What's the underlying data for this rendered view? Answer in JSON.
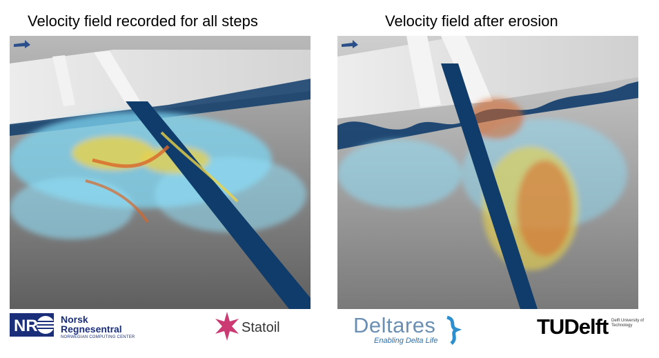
{
  "titles": {
    "left": "Velocity field recorded for all steps",
    "right": "Velocity field after erosion"
  },
  "logos": {
    "nr": {
      "mark": "NR",
      "name_line1": "Norsk",
      "name_line2": "Regnesentral",
      "subtitle": "NORWEGIAN COMPUTING CENTER"
    },
    "statoil": {
      "name": "Statoil"
    },
    "deltares": {
      "name": "Deltares",
      "tagline": "Enabling Delta Life"
    },
    "tudelft": {
      "name": "TUDelft",
      "subtitle": "Delft University of Technology"
    }
  },
  "colors": {
    "channel_blue": "#0f3c6a",
    "cold": "#7fd6f2",
    "warm": "#e9d24a",
    "hot": "#d9672a"
  }
}
